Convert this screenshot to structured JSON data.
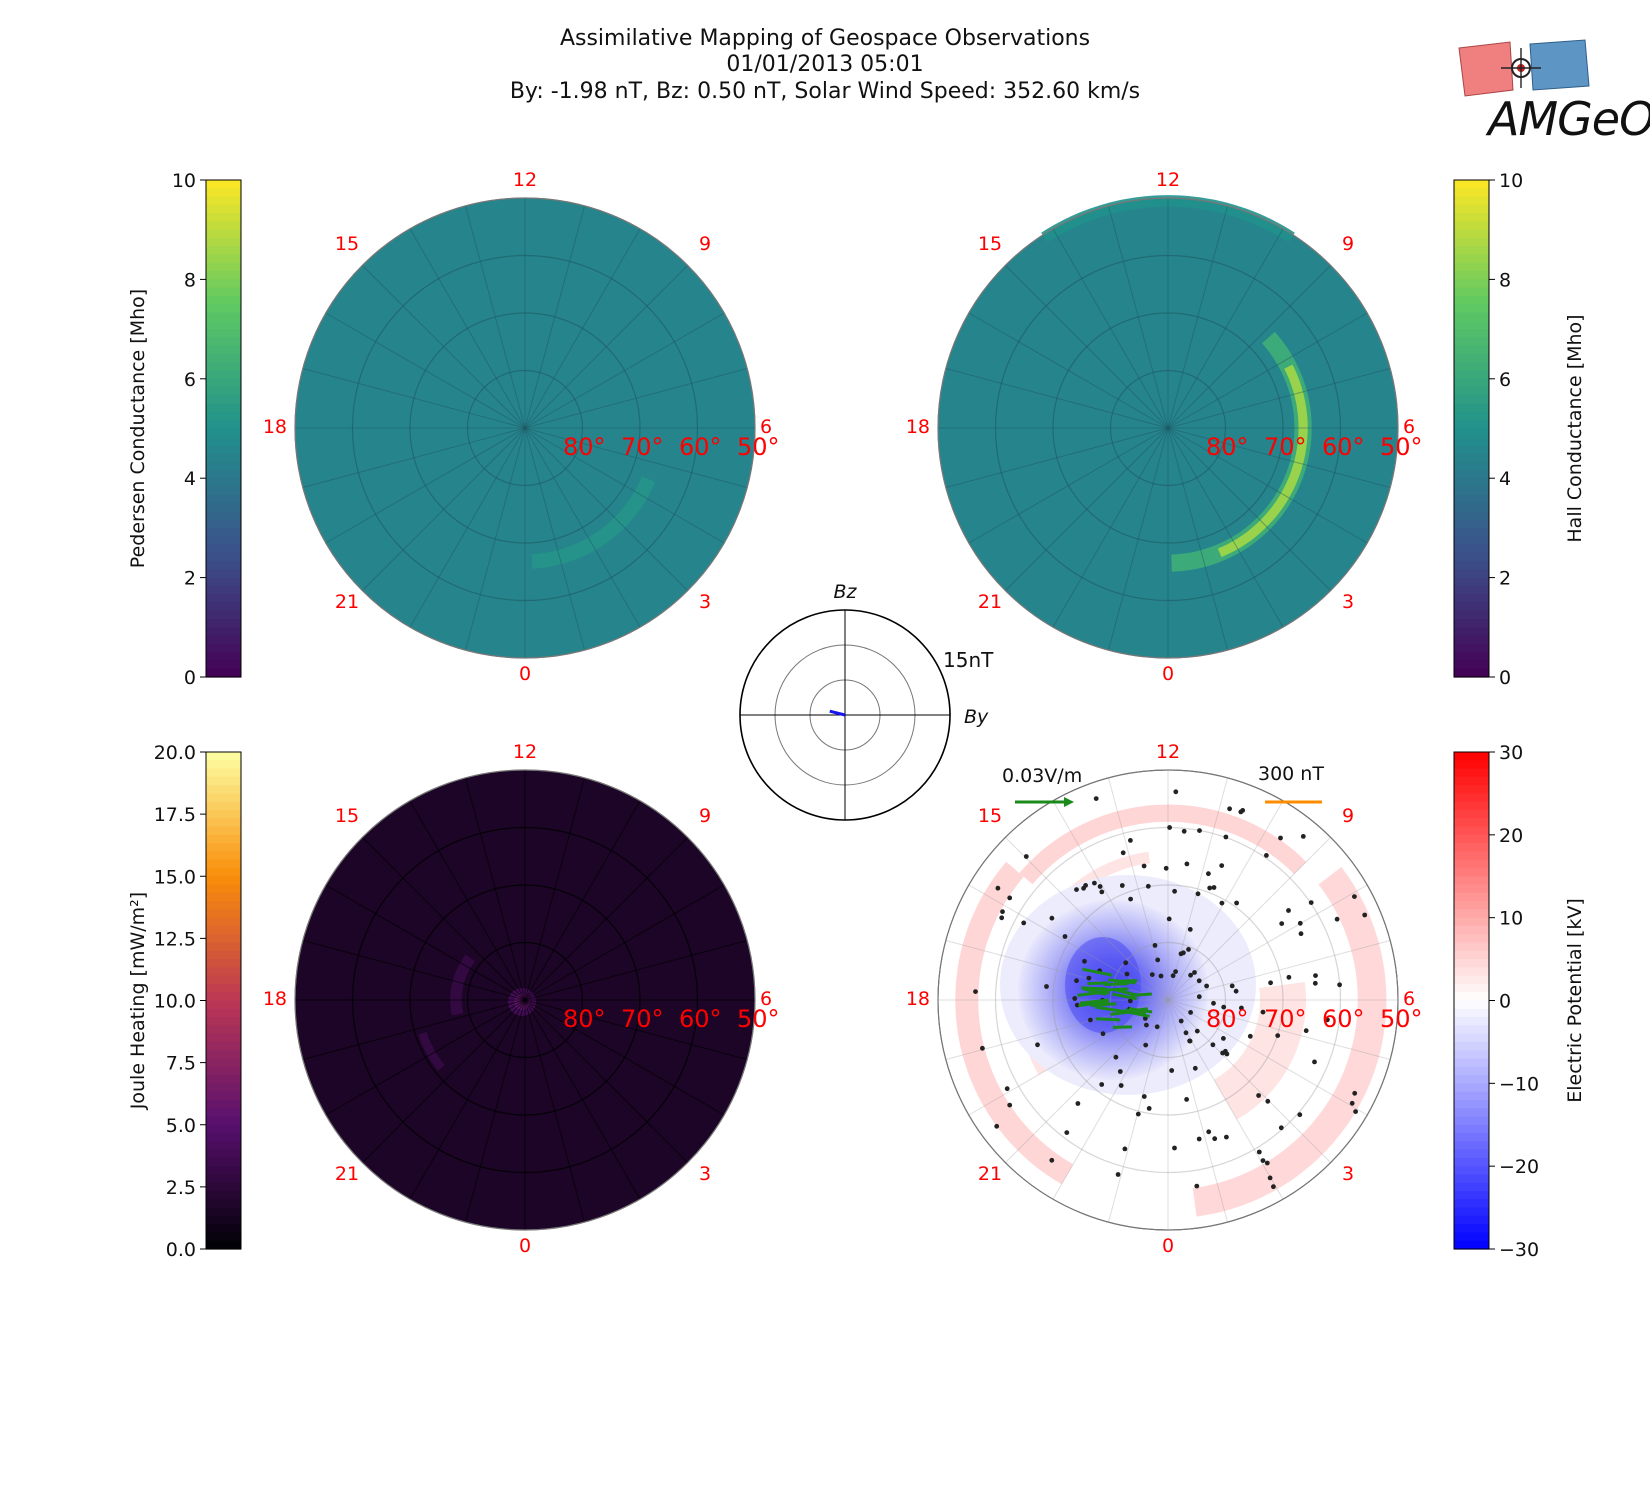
{
  "title": {
    "line1": "Assimilative Mapping of Geospace Observations",
    "line2": "01/01/2013 05:01",
    "line3": "By: -1.98 nT, Bz: 0.50 nT, Solar Wind Speed: 352.60 km/s"
  },
  "logo": {
    "text": "AMGeO"
  },
  "colors": {
    "label_red": "#ff0000",
    "polar_fill": "#37838e",
    "joule_fill": "#10101f",
    "electric_field_arrow": "#1a8a1a",
    "magnetometer_bar": "#ff8c00",
    "imf_vector": "#1515ee"
  },
  "polar_common": {
    "mlt_labels": [
      "12",
      "15",
      "18",
      "21",
      "0",
      "3",
      "6",
      "9"
    ],
    "latitude_labels": [
      "80°",
      "70°",
      "60°",
      "50°"
    ]
  },
  "chart_data": [
    {
      "type": "heatmap",
      "panel": "pedersen",
      "projection": "polar (MLT vs magnetic latitude)",
      "colorbar_label": "Pedersen Conductance [Mho]",
      "colormap": "viridis",
      "colorbar_ticks": [
        "0",
        "2",
        "4",
        "6",
        "8",
        "10"
      ],
      "clim": [
        0,
        10
      ],
      "background_value": 4.5,
      "features": [
        {
          "name": "auroral oval enhancement",
          "mlt_range": [
            0,
            6
          ],
          "value": 5.2
        }
      ]
    },
    {
      "type": "heatmap",
      "panel": "hall",
      "projection": "polar (MLT vs magnetic latitude)",
      "colorbar_label": "Hall Conductance [Mho]",
      "colormap": "viridis",
      "colorbar_ticks": [
        "0",
        "2",
        "4",
        "6",
        "8",
        "10"
      ],
      "clim": [
        0,
        10
      ],
      "background_value": 4.5,
      "features": [
        {
          "name": "auroral oval enhancement",
          "mlt_range": [
            0,
            9
          ],
          "value": 8.5
        },
        {
          "name": "dayside low-latitude band",
          "mlt_range": [
            9,
            15
          ],
          "value": 5.0
        }
      ]
    },
    {
      "type": "heatmap",
      "panel": "joule",
      "projection": "polar (MLT vs magnetic latitude)",
      "colorbar_label": "Joule Heating [mW/m²]",
      "colormap": "inferno",
      "colorbar_ticks": [
        "0.0",
        "2.5",
        "5.0",
        "7.5",
        "10.0",
        "12.5",
        "15.0",
        "17.5",
        "20.0"
      ],
      "clim": [
        0,
        20
      ],
      "background_value": 0.3,
      "features": [
        {
          "name": "polar cap spot",
          "latitude": 89,
          "value": 2.5
        },
        {
          "name": "pre-midnight arc",
          "mlt_range": [
            18,
            21
          ],
          "value": 1.5
        }
      ]
    },
    {
      "type": "heatmap",
      "panel": "potential",
      "projection": "polar (MLT vs magnetic latitude)",
      "colorbar_label": "Electric Potential [kV]",
      "colormap": "bwr",
      "colorbar_ticks": [
        "30",
        "20",
        "10",
        "0",
        "−10",
        "−20",
        "−30"
      ],
      "clim": [
        -30,
        30
      ],
      "minimum_kV": -22,
      "scale_labels": {
        "efield": "0.03V/m",
        "magnetometer": "300 nT"
      }
    },
    {
      "type": "scatter",
      "panel": "imf-clock-dial",
      "xlabel": "By",
      "ylabel": "Bz",
      "ring_label": "15nT",
      "rings_nT": [
        15,
        30
      ],
      "imf_vector": {
        "By": -1.98,
        "Bz": 0.5
      }
    }
  ]
}
